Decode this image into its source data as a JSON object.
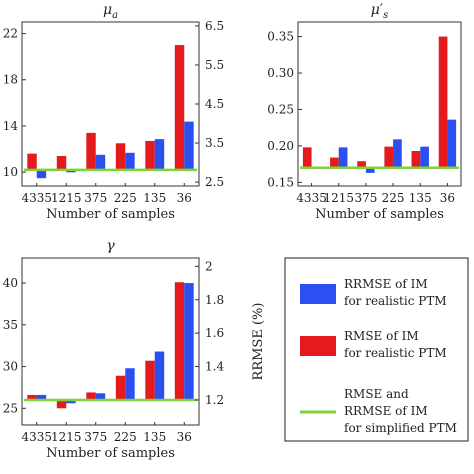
{
  "colors": {
    "red": "#e41a1c",
    "blue": "#2b4ff0",
    "green": "#7fd23a",
    "axis": "#333333"
  },
  "legend": {
    "items": [
      {
        "type": "bar",
        "color": "#2b4ff0",
        "lines": [
          "RRMSE of IM",
          "for realistic PTM"
        ]
      },
      {
        "type": "bar",
        "color": "#e41a1c",
        "lines": [
          "RMSE of IM",
          "for realistic PTM"
        ]
      },
      {
        "type": "line",
        "color": "#7fd23a",
        "lines": [
          "RMSE and",
          "RRMSE of IM",
          "for simplified PTM"
        ]
      }
    ]
  },
  "chart_data": [
    {
      "type": "bar",
      "title": "μa",
      "xlabel": "Number of samples",
      "categories": [
        "4335",
        "1215",
        "375",
        "225",
        "135",
        "36"
      ],
      "series": [
        {
          "name": "RMSE of IM for realistic PTM",
          "axis": "left",
          "values": [
            11.6,
            11.4,
            13.4,
            12.5,
            12.7,
            21.0
          ]
        },
        {
          "name": "RRMSE of IM for realistic PTM",
          "axis": "right",
          "values": [
            2.6,
            2.75,
            3.2,
            3.25,
            3.6,
            4.05
          ]
        }
      ],
      "reference": {
        "name": "RMSE and RRMSE of IM for simplified PTM",
        "value": 10.2
      },
      "left_axis": {
        "ticks": [
          10,
          14,
          18,
          22
        ],
        "ylim": [
          8.8,
          23.0
        ]
      },
      "right_axis": {
        "ticks": [
          2.5,
          3.5,
          4.5,
          5.5,
          6.5
        ],
        "ylim": [
          2.4,
          6.6
        ]
      }
    },
    {
      "type": "bar",
      "title": "μ′s",
      "xlabel": "Number of samples",
      "categories": [
        "4335",
        "1215",
        "375",
        "225",
        "135",
        "36"
      ],
      "series": [
        {
          "name": "RMSE of IM for realistic PTM",
          "axis": "left",
          "values": [
            0.198,
            0.184,
            0.179,
            0.199,
            0.193,
            0.35
          ]
        },
        {
          "name": "RRMSE of IM for realistic PTM",
          "axis": "left",
          "values": [
            0.169,
            0.198,
            0.163,
            0.209,
            0.199,
            0.236
          ]
        }
      ],
      "reference": {
        "name": "RMSE and RRMSE of IM for simplified PTM",
        "value": 0.17
      },
      "left_axis": {
        "ticks": [
          0.15,
          0.2,
          0.25,
          0.3,
          0.35
        ],
        "tick_labels": [
          "0.15",
          "0.20",
          "0.25",
          "0.30",
          "0.35"
        ],
        "ylim": [
          0.145,
          0.37
        ]
      }
    },
    {
      "type": "bar",
      "title": "γ",
      "xlabel": "Number of samples",
      "right_ylabel": "RRMSE (%)",
      "categories": [
        "4335",
        "1215",
        "375",
        "225",
        "135",
        "36"
      ],
      "series": [
        {
          "name": "RMSE of IM for realistic PTM",
          "axis": "left",
          "values": [
            26.6,
            25.0,
            26.9,
            28.9,
            30.7,
            40.1
          ]
        },
        {
          "name": "RRMSE of IM for realistic PTM",
          "axis": "right",
          "values": [
            1.23,
            1.18,
            1.24,
            1.39,
            1.49,
            1.9
          ]
        }
      ],
      "reference": {
        "name": "RMSE and RRMSE of IM for simplified PTM",
        "value": 26.0
      },
      "left_axis": {
        "ticks": [
          25,
          30,
          35,
          40
        ],
        "ylim": [
          23.0,
          43.0
        ]
      },
      "right_axis": {
        "ticks": [
          1.2,
          1.4,
          1.6,
          1.8,
          2.0
        ],
        "ylim": [
          1.05,
          2.05
        ]
      }
    }
  ]
}
